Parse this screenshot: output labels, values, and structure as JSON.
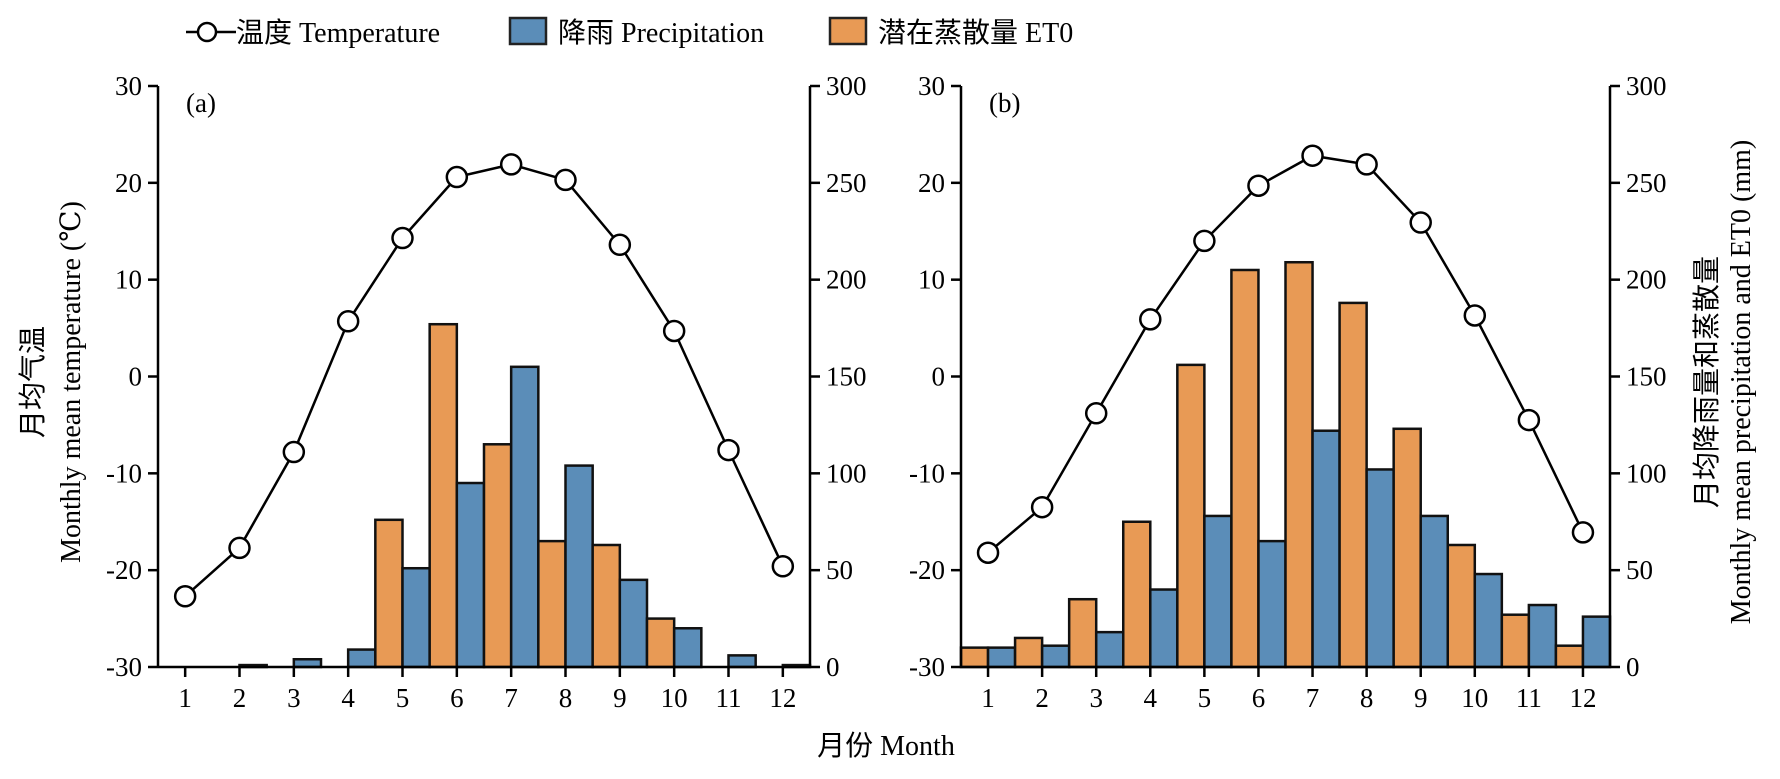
{
  "legend": {
    "temperature": "温度 Temperature",
    "precipitation": "降雨 Precipitation",
    "et0": "潜在蒸散量 ET0"
  },
  "axes": {
    "left_label_cn": "月均气温",
    "left_label_en": "Monthly mean temperature (℃)",
    "right_label_cn": "月均降雨量和蒸散量",
    "right_label_en": "Monthly mean precipitation and ET0 (mm)",
    "x_label": "月份 Month"
  },
  "colors": {
    "precipitation": "#5b8db8",
    "et0": "#e89a55",
    "line": "#000000",
    "marker_fill": "#ffffff"
  },
  "chart_data": [
    {
      "type": "bar",
      "panel_label": "(a)",
      "categories": [
        "1",
        "2",
        "3",
        "4",
        "5",
        "6",
        "7",
        "8",
        "9",
        "10",
        "11",
        "12"
      ],
      "temperature": [
        -22.7,
        -17.7,
        -7.8,
        5.7,
        14.3,
        20.6,
        21.9,
        20.3,
        13.6,
        4.7,
        -7.6,
        -19.6
      ],
      "series": [
        {
          "name": "潜在蒸散量 ET0",
          "values": [
            0,
            0,
            0,
            0,
            76,
            177,
            115,
            65,
            63,
            25,
            0,
            0
          ]
        },
        {
          "name": "降雨 Precipitation",
          "values": [
            0,
            1,
            4,
            9,
            51,
            95,
            155,
            104,
            45,
            20,
            6,
            1
          ]
        }
      ],
      "ylim_left": [
        -30,
        30
      ],
      "ylim_right": [
        0,
        300
      ],
      "yticks_left": [
        -30,
        -20,
        -10,
        0,
        10,
        20,
        30
      ],
      "yticks_right": [
        0,
        50,
        100,
        150,
        200,
        250,
        300
      ]
    },
    {
      "type": "bar",
      "panel_label": "(b)",
      "categories": [
        "1",
        "2",
        "3",
        "4",
        "5",
        "6",
        "7",
        "8",
        "9",
        "10",
        "11",
        "12"
      ],
      "temperature": [
        -18.2,
        -13.5,
        -3.8,
        5.9,
        14.0,
        19.7,
        22.8,
        21.9,
        15.9,
        6.3,
        -4.5,
        -16.1
      ],
      "series": [
        {
          "name": "潜在蒸散量 ET0",
          "values": [
            10,
            15,
            35,
            75,
            156,
            205,
            209,
            188,
            123,
            63,
            27,
            11
          ]
        },
        {
          "name": "降雨 Precipitation",
          "values": [
            10,
            11,
            18,
            40,
            78,
            65,
            122,
            102,
            78,
            48,
            32,
            26
          ]
        }
      ],
      "ylim_left": [
        -30,
        30
      ],
      "ylim_right": [
        0,
        300
      ],
      "yticks_left": [
        -30,
        -20,
        -10,
        0,
        10,
        20,
        30
      ],
      "yticks_right": [
        0,
        50,
        100,
        150,
        200,
        250,
        300
      ]
    }
  ]
}
